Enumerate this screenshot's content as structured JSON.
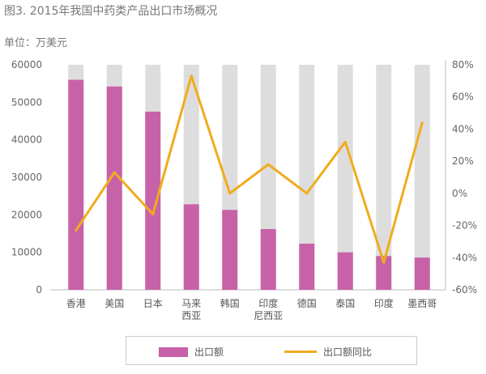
{
  "chart_data": {
    "type": "bar",
    "title": "图3. 2015年我国中药类产品出口市场概况",
    "unit_label": "单位：万美元",
    "categories": [
      [
        "香港"
      ],
      [
        "美国"
      ],
      [
        "日本"
      ],
      [
        "马来",
        "西亚"
      ],
      [
        "韩国"
      ],
      [
        "印度",
        "尼西亚"
      ],
      [
        "德国"
      ],
      [
        "泰国"
      ],
      [
        "印度"
      ],
      [
        "墨西哥"
      ]
    ],
    "left_axis": {
      "min": 0,
      "max": 60000,
      "ticks": [
        "0",
        "10000",
        "20000",
        "30000",
        "40000",
        "50000",
        "60000"
      ]
    },
    "right_axis": {
      "min": -60,
      "max": 80,
      "ticks": [
        "-60%",
        "-40%",
        "-20%",
        "0%",
        "20%",
        "40%",
        "60%",
        "80%"
      ]
    },
    "background_bar_value": 60000,
    "series": [
      {
        "name": "出口额",
        "type": "bar",
        "axis": "left",
        "values": [
          56000,
          54200,
          47500,
          22800,
          21300,
          16200,
          12300,
          10000,
          9000,
          8600
        ]
      },
      {
        "name": "出口额同比",
        "type": "line",
        "axis": "right",
        "values": [
          -23,
          13,
          -13,
          73,
          0,
          18,
          0,
          32,
          -43,
          44
        ]
      }
    ],
    "colors": {
      "bar": "#c862a8",
      "background_bar": "#dddddd",
      "line": "#f0ac1e"
    },
    "legend_position": "bottom"
  }
}
